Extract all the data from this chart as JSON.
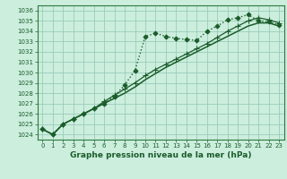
{
  "title": "Graphe pression niveau de la mer (hPa)",
  "bg_color": "#cceedd",
  "grid_color": "#99ccbb",
  "line_color": "#1a5c2a",
  "border_color": "#2d7a40",
  "xlim": [
    -0.5,
    23.5
  ],
  "ylim": [
    1023.5,
    1036.5
  ],
  "yticks": [
    1024,
    1025,
    1026,
    1027,
    1028,
    1029,
    1030,
    1031,
    1032,
    1033,
    1034,
    1035,
    1036
  ],
  "xticks": [
    0,
    1,
    2,
    3,
    4,
    5,
    6,
    7,
    8,
    9,
    10,
    11,
    12,
    13,
    14,
    15,
    16,
    17,
    18,
    19,
    20,
    21,
    22,
    23
  ],
  "series": [
    {
      "name": "dotted_diamond",
      "x": [
        0,
        1,
        2,
        3,
        4,
        5,
        6,
        7,
        8,
        9,
        10,
        11,
        12,
        13,
        14,
        15,
        16,
        17,
        18,
        19,
        20,
        21,
        22,
        23
      ],
      "y": [
        1024.5,
        1024.0,
        1025.0,
        1025.5,
        1026.0,
        1026.5,
        1027.0,
        1027.7,
        1028.8,
        1030.2,
        1033.5,
        1033.8,
        1033.5,
        1033.3,
        1033.2,
        1033.1,
        1034.0,
        1034.5,
        1035.1,
        1035.3,
        1035.6,
        1035.0,
        1034.9,
        1034.6
      ],
      "linestyle": ":",
      "marker": "D",
      "markersize": 2.5,
      "linewidth": 1.0
    },
    {
      "name": "solid_plus",
      "x": [
        0,
        1,
        2,
        3,
        4,
        5,
        6,
        7,
        8,
        9,
        10,
        11,
        12,
        13,
        14,
        15,
        16,
        17,
        18,
        19,
        20,
        21,
        22,
        23
      ],
      "y": [
        1024.5,
        1024.0,
        1025.0,
        1025.5,
        1026.0,
        1026.5,
        1027.2,
        1027.8,
        1028.4,
        1029.0,
        1029.7,
        1030.3,
        1030.8,
        1031.3,
        1031.8,
        1032.3,
        1032.8,
        1033.4,
        1034.0,
        1034.5,
        1035.0,
        1035.3,
        1035.1,
        1034.8
      ],
      "linestyle": "-",
      "marker": "+",
      "markersize": 4,
      "linewidth": 0.9
    },
    {
      "name": "solid_none",
      "x": [
        0,
        1,
        2,
        3,
        4,
        5,
        6,
        7,
        8,
        9,
        10,
        11,
        12,
        13,
        14,
        15,
        16,
        17,
        18,
        19,
        20,
        21,
        22,
        23
      ],
      "y": [
        1024.5,
        1024.0,
        1025.0,
        1025.5,
        1026.0,
        1026.5,
        1027.0,
        1027.5,
        1028.0,
        1028.6,
        1029.3,
        1029.9,
        1030.5,
        1031.0,
        1031.5,
        1032.0,
        1032.5,
        1033.0,
        1033.5,
        1034.0,
        1034.5,
        1034.8,
        1034.8,
        1034.5
      ],
      "linestyle": "-",
      "marker": null,
      "markersize": 0,
      "linewidth": 1.1
    }
  ],
  "ylabel_fontsize": 5,
  "xlabel_fontsize": 6.5,
  "tick_fontsize": 5,
  "title_fontsize": 7
}
